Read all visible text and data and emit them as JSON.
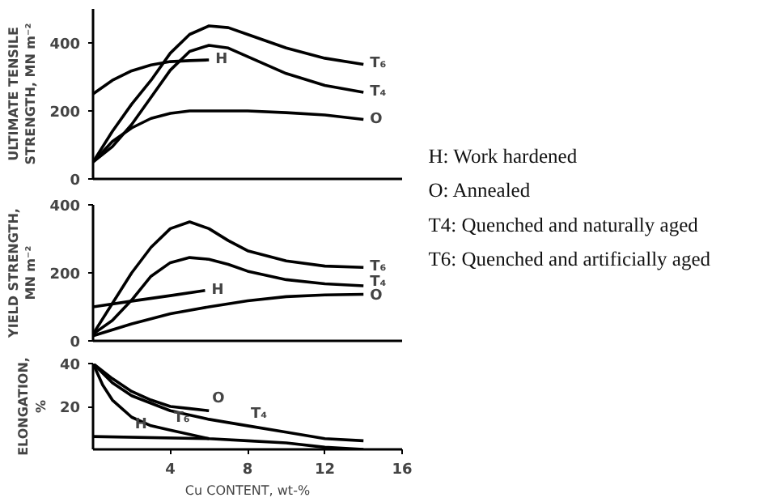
{
  "chart_data": [
    {
      "type": "line",
      "ylabel": "ULTIMATE TENSILE STRENGTH, MN m⁻²",
      "xlim": [
        0,
        16
      ],
      "xticks": [
        4,
        8,
        12,
        16
      ],
      "ylim": [
        0,
        500
      ],
      "yticks": [
        0,
        200,
        400
      ],
      "tick_labels": "y",
      "series": [
        {
          "color": "#000000",
          "x": [
            0,
            1,
            2,
            3,
            4,
            5,
            6,
            7,
            8,
            10,
            12,
            14
          ],
          "values": [
            50,
            140,
            220,
            290,
            370,
            425,
            450,
            445,
            425,
            385,
            355,
            337
          ]
        },
        {
          "color": "#000000",
          "x": [
            0,
            1,
            2,
            3,
            4,
            5,
            6,
            7,
            8,
            10,
            12,
            14
          ],
          "values": [
            50,
            95,
            160,
            240,
            320,
            375,
            393,
            385,
            360,
            310,
            275,
            255
          ]
        },
        {
          "color": "#000000",
          "x": [
            0,
            1,
            2,
            3,
            4,
            5,
            6
          ],
          "values": [
            250,
            290,
            318,
            335,
            345,
            348,
            350
          ]
        },
        {
          "color": "#000000",
          "x": [
            0,
            1,
            2,
            3,
            4,
            5,
            6,
            8,
            10,
            12,
            14
          ],
          "values": [
            50,
            110,
            150,
            178,
            193,
            200,
            200,
            200,
            195,
            188,
            175
          ]
        }
      ],
      "annotations": [
        {
          "text": "T₆",
          "x": 14,
          "y": 337
        },
        {
          "text": "T₄",
          "x": 14,
          "y": 255
        },
        {
          "text": "H",
          "x": 6,
          "y": 350
        },
        {
          "text": "O",
          "x": 14,
          "y": 175
        }
      ]
    },
    {
      "type": "line",
      "ylabel": "YIELD STRENGTH, MN m⁻²",
      "xlim": [
        0,
        16
      ],
      "xticks": [
        4,
        8,
        12,
        16
      ],
      "ylim": [
        0,
        400
      ],
      "yticks": [
        0,
        200,
        400
      ],
      "tick_labels": "y",
      "series": [
        {
          "color": "#000000",
          "x": [
            0,
            1,
            2,
            3,
            4,
            5,
            6,
            7,
            8,
            10,
            12,
            14
          ],
          "values": [
            20,
            110,
            200,
            275,
            330,
            350,
            330,
            295,
            265,
            235,
            220,
            216
          ]
        },
        {
          "color": "#000000",
          "x": [
            0,
            1,
            2,
            3,
            4,
            5,
            6,
            7,
            8,
            10,
            12,
            14
          ],
          "values": [
            20,
            60,
            120,
            190,
            230,
            245,
            240,
            225,
            205,
            180,
            168,
            162
          ]
        },
        {
          "color": "#000000",
          "x": [
            0,
            2,
            4,
            5.8
          ],
          "values": [
            100,
            117,
            133,
            148
          ]
        },
        {
          "color": "#000000",
          "x": [
            0,
            2,
            4,
            6,
            8,
            10,
            12,
            14
          ],
          "values": [
            15,
            50,
            80,
            100,
            118,
            130,
            135,
            137
          ]
        }
      ],
      "annotations": [
        {
          "text": "T₆",
          "x": 14,
          "y": 216
        },
        {
          "text": "T₄",
          "x": 14,
          "y": 172
        },
        {
          "text": "H",
          "x": 5.8,
          "y": 148
        },
        {
          "text": "O",
          "x": 14,
          "y": 130
        }
      ]
    },
    {
      "type": "line",
      "ylabel": "ELONGATION, %",
      "xlabel": "Cu CONTENT, wt-%",
      "xlim": [
        0,
        16
      ],
      "xticks": [
        4,
        8,
        12,
        16
      ],
      "ylim": [
        0,
        40
      ],
      "yticks": [
        20,
        40
      ],
      "series": [
        {
          "color": "#000000",
          "x": [
            0,
            1,
            2,
            3,
            4,
            5,
            6
          ],
          "values": [
            40,
            33,
            27,
            23,
            20,
            19,
            18
          ]
        },
        {
          "color": "#000000",
          "x": [
            0,
            1,
            2,
            4,
            6,
            8,
            10,
            12,
            14
          ],
          "values": [
            40,
            31,
            25,
            18,
            14,
            11,
            8,
            5,
            4
          ]
        },
        {
          "color": "#000000",
          "x": [
            0,
            0.5,
            1,
            2,
            3,
            4,
            6,
            8,
            10,
            12,
            14
          ],
          "values": [
            40,
            30,
            23,
            15,
            11,
            9,
            5,
            4,
            3,
            1,
            0
          ]
        },
        {
          "color": "#000000",
          "x": [
            0,
            6
          ],
          "values": [
            6,
            5
          ]
        }
      ],
      "annotations": [
        {
          "text": "O",
          "x": 6,
          "y": 18
        },
        {
          "text": "T₄",
          "x": 8,
          "y": 11
        },
        {
          "text": "T₆",
          "x": 4,
          "y": 9
        },
        {
          "text": "H",
          "x": 2,
          "y": 6
        }
      ]
    },
    {
      "type": "other",
      "annotations": [
        "H: Work hardened",
        "O: Annealed",
        "T4: Quenched and naturally aged",
        "T6: Quenched and artificially aged"
      ]
    }
  ]
}
